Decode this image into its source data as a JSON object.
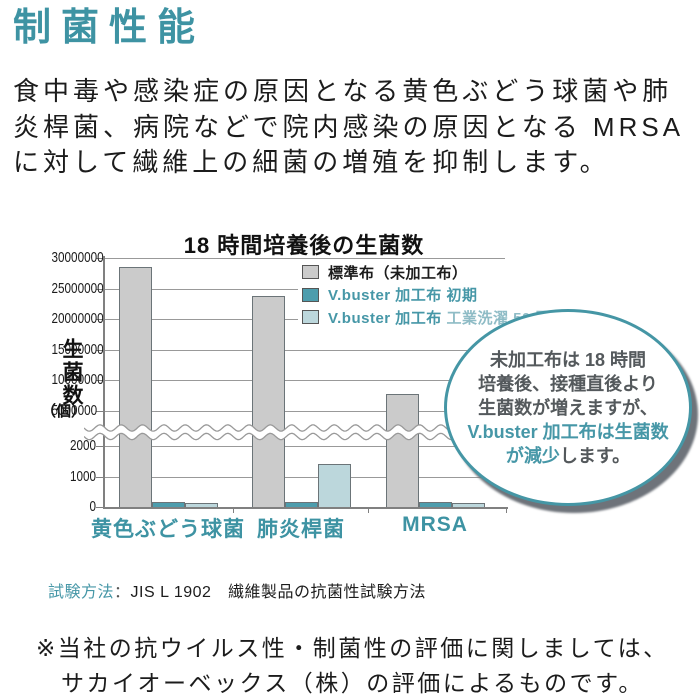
{
  "page": {
    "title": "制菌性能",
    "intro_lines": [
      "食中毒や感染症の原因となる黄色ぶどう球菌や肺",
      "炎桿菌、病院などで院内感染の原因となる MRSA",
      "に対して繊維上の細菌の増殖を抑制します。"
    ],
    "test_method": {
      "label": "試験方法",
      "colon": "：",
      "value": "JIS L 1902　繊維製品の抗菌性試験方法"
    },
    "footnote_lines": [
      "※当社の抗ウイルス性・制菌性の評価に関しましては、",
      "サカイオーベックス（株）の評価によるものです。"
    ]
  },
  "colors": {
    "heading_teal": "#3e93a3",
    "teal_text": "#4697a7",
    "light_teal_text": "#8fbcc6",
    "gray_bar": "#cbcbcb",
    "teal_bar": "#4d9dad",
    "light_teal_bar": "#bcd7dc",
    "dark_text": "#1c1c1c"
  },
  "chart_data": {
    "type": "bar",
    "title": "18 時間培養後の生菌数",
    "ylabel": "生菌数",
    "ylabel_unit": "（個）",
    "xlabel": "",
    "categories": [
      "黄色ぶどう球菌",
      "肺炎桿菌",
      "MRSA"
    ],
    "series": [
      {
        "name": "標準布（未加工布）",
        "color": "#cbcbcb",
        "text_color": "#1c1c1c",
        "values": [
          28500000,
          23800000,
          7800000
        ]
      },
      {
        "name": "V.buster 加工布 初期",
        "color": "#4d9dad",
        "text_color": "#4697a7",
        "values": [
          150,
          150,
          150
        ]
      },
      {
        "name": "V.buster 加工布 工業洗濯 50 回",
        "color": "#bcd7dc",
        "text_color": "#4697a7",
        "name_parts": [
          {
            "text": "V.buster 加工布 ",
            "color": "#4697a7"
          },
          {
            "text": "工業洗濯 50 回",
            "color": "#8fbcc6"
          }
        ],
        "values": [
          120,
          1400,
          120
        ]
      }
    ],
    "y_axis": {
      "axis_break": true,
      "upper_ticks": [
        30000000,
        25000000,
        20000000,
        15000000,
        10000000,
        5000000
      ],
      "lower_ticks": [
        2000,
        1000,
        0
      ],
      "upper_range": [
        5000000,
        30000000
      ],
      "lower_range": [
        0,
        2000
      ]
    },
    "grid": true,
    "legend_position": "top-right",
    "callout": {
      "lines": [
        [
          {
            "text": "未加工布は 18 時間",
            "color": "dark"
          }
        ],
        [
          {
            "text": "培養後、接種直後より",
            "color": "dark"
          }
        ],
        [
          {
            "text": "生菌数が増えますが、",
            "color": "dark"
          }
        ],
        [
          {
            "text": "V.buster 加工布は生菌数",
            "color": "teal"
          }
        ],
        [
          {
            "text": "が減少",
            "color": "teal"
          },
          {
            "text": "します。",
            "color": "dark"
          }
        ]
      ]
    }
  }
}
